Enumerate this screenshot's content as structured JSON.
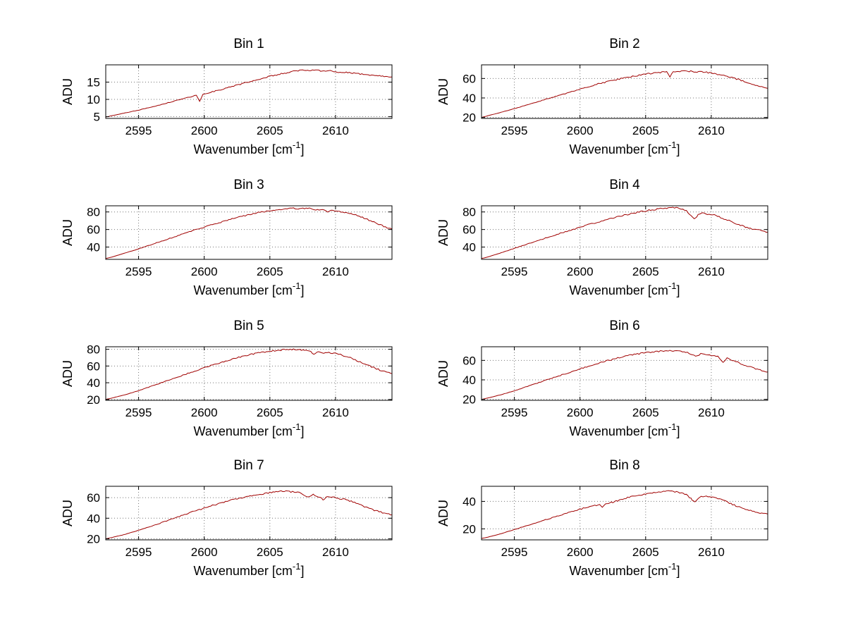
{
  "figure": {
    "background": "#ffffff",
    "line_color": "#a00000",
    "grid_color": "#777777",
    "axis_color": "#000000",
    "text_color": "#000000"
  },
  "chart_data": [
    {
      "type": "line",
      "title": "Bin 1",
      "ylabel": "ADU",
      "xlabel": {
        "text": "Wavenumber [cm",
        "sup": "-1",
        "close": "]"
      },
      "xlim": [
        2592.5,
        2614.3
      ],
      "ylim": [
        4.5,
        20
      ],
      "xticks": [
        2595,
        2600,
        2605,
        2610
      ],
      "yticks": [
        5,
        10,
        15
      ],
      "grid": true,
      "noise": 0.18,
      "points": [
        [
          2592.5,
          4.9
        ],
        [
          2593,
          5.3
        ],
        [
          2594,
          6.1
        ],
        [
          2595,
          6.9
        ],
        [
          2596,
          7.8
        ],
        [
          2597,
          8.8
        ],
        [
          2598,
          9.8
        ],
        [
          2599,
          10.8
        ],
        [
          2599.4,
          11.2
        ],
        [
          2599.65,
          9.4
        ],
        [
          2599.9,
          11.5
        ],
        [
          2600.5,
          12.1
        ],
        [
          2601,
          12.6
        ],
        [
          2602,
          13.6
        ],
        [
          2603,
          14.7
        ],
        [
          2604,
          15.7
        ],
        [
          2605,
          16.7
        ],
        [
          2606,
          17.5
        ],
        [
          2606.8,
          18.1
        ],
        [
          2607.5,
          18.6
        ],
        [
          2608,
          18.3
        ],
        [
          2608.6,
          18.7
        ],
        [
          2609,
          18.1
        ],
        [
          2609.6,
          18.4
        ],
        [
          2610,
          18.0
        ],
        [
          2610.7,
          17.8
        ],
        [
          2611.4,
          17.6
        ],
        [
          2612,
          17.3
        ],
        [
          2613,
          16.9
        ],
        [
          2614.3,
          16.5
        ]
      ]
    },
    {
      "type": "line",
      "title": "Bin 2",
      "ylabel": "ADU",
      "xlabel": {
        "text": "Wavenumber [cm",
        "sup": "-1",
        "close": "]"
      },
      "xlim": [
        2592.5,
        2614.3
      ],
      "ylim": [
        19,
        74
      ],
      "xticks": [
        2595,
        2600,
        2605,
        2610
      ],
      "yticks": [
        20,
        40,
        60
      ],
      "grid": true,
      "noise": 0.7,
      "points": [
        [
          2592.5,
          20
        ],
        [
          2593,
          21.8
        ],
        [
          2594,
          25.3
        ],
        [
          2595,
          29
        ],
        [
          2596,
          33
        ],
        [
          2597,
          37
        ],
        [
          2598,
          41
        ],
        [
          2599,
          45
        ],
        [
          2600,
          49
        ],
        [
          2601,
          53
        ],
        [
          2602,
          56.5
        ],
        [
          2603,
          59.5
        ],
        [
          2604,
          62
        ],
        [
          2605,
          64.5
        ],
        [
          2606,
          66
        ],
        [
          2606.6,
          66.8
        ],
        [
          2606.85,
          61.5
        ],
        [
          2607.1,
          66.8
        ],
        [
          2607.6,
          67.2
        ],
        [
          2608.2,
          67.6
        ],
        [
          2608.8,
          67
        ],
        [
          2609.4,
          66.8
        ],
        [
          2610,
          65.5
        ],
        [
          2610.6,
          64
        ],
        [
          2611.2,
          62
        ],
        [
          2611.8,
          60
        ],
        [
          2612.4,
          57.5
        ],
        [
          2613,
          54.5
        ],
        [
          2613.6,
          52
        ],
        [
          2614.3,
          49.8
        ]
      ]
    },
    {
      "type": "line",
      "title": "Bin 3",
      "ylabel": "ADU",
      "xlabel": {
        "text": "Wavenumber [cm",
        "sup": "-1",
        "close": "]"
      },
      "xlim": [
        2592.5,
        2614.3
      ],
      "ylim": [
        26,
        87
      ],
      "xticks": [
        2595,
        2600,
        2605,
        2610
      ],
      "yticks": [
        40,
        60,
        80
      ],
      "grid": true,
      "noise": 0.8,
      "points": [
        [
          2592.5,
          27
        ],
        [
          2593,
          28.8
        ],
        [
          2594,
          33.3
        ],
        [
          2595,
          38
        ],
        [
          2596,
          43
        ],
        [
          2597,
          48
        ],
        [
          2598,
          53
        ],
        [
          2599,
          58
        ],
        [
          2600,
          62.8
        ],
        [
          2601,
          67.3
        ],
        [
          2602,
          71.5
        ],
        [
          2603,
          75.5
        ],
        [
          2604,
          78.8
        ],
        [
          2605,
          81.5
        ],
        [
          2605.6,
          82.8
        ],
        [
          2606.2,
          83.6
        ],
        [
          2606.8,
          84.2
        ],
        [
          2607.4,
          83.6
        ],
        [
          2608,
          84.6
        ],
        [
          2608.5,
          82.5
        ],
        [
          2609,
          83.2
        ],
        [
          2609.4,
          80.5
        ],
        [
          2609.8,
          82
        ],
        [
          2610.3,
          80.5
        ],
        [
          2610.8,
          79.5
        ],
        [
          2611.3,
          77.5
        ],
        [
          2611.8,
          75
        ],
        [
          2612.3,
          72
        ],
        [
          2612.8,
          69
        ],
        [
          2613.3,
          66
        ],
        [
          2613.8,
          63
        ],
        [
          2614.3,
          60.5
        ]
      ]
    },
    {
      "type": "line",
      "title": "Bin 4",
      "ylabel": "ADU",
      "xlabel": {
        "text": "Wavenumber [cm",
        "sup": "-1",
        "close": "]"
      },
      "xlim": [
        2592.5,
        2614.3
      ],
      "ylim": [
        26,
        87
      ],
      "xticks": [
        2595,
        2600,
        2605,
        2610
      ],
      "yticks": [
        40,
        60,
        80
      ],
      "grid": true,
      "noise": 0.8,
      "points": [
        [
          2592.5,
          27
        ],
        [
          2593,
          28.8
        ],
        [
          2594,
          33.5
        ],
        [
          2595,
          38.5
        ],
        [
          2596,
          43.5
        ],
        [
          2597,
          48.5
        ],
        [
          2598,
          53.3
        ],
        [
          2599,
          58
        ],
        [
          2600,
          62.5
        ],
        [
          2601,
          67
        ],
        [
          2602,
          71
        ],
        [
          2603,
          75
        ],
        [
          2604,
          78.5
        ],
        [
          2605,
          81.3
        ],
        [
          2606,
          83.5
        ],
        [
          2606.6,
          84.6
        ],
        [
          2607.2,
          85
        ],
        [
          2607.7,
          83.8
        ],
        [
          2608.1,
          81
        ],
        [
          2608.45,
          76.5
        ],
        [
          2608.7,
          72
        ],
        [
          2609,
          76.5
        ],
        [
          2609.3,
          78.8
        ],
        [
          2609.7,
          77
        ],
        [
          2610.1,
          77.5
        ],
        [
          2610.6,
          74.5
        ],
        [
          2611.1,
          71.5
        ],
        [
          2611.6,
          68.5
        ],
        [
          2612.1,
          65.5
        ],
        [
          2612.6,
          63
        ],
        [
          2613.1,
          61
        ],
        [
          2613.7,
          59
        ],
        [
          2614.3,
          57
        ]
      ]
    },
    {
      "type": "line",
      "title": "Bin 5",
      "ylabel": "ADU",
      "xlabel": {
        "text": "Wavenumber [cm",
        "sup": "-1",
        "close": "]"
      },
      "xlim": [
        2592.5,
        2614.3
      ],
      "ylim": [
        19,
        83
      ],
      "xticks": [
        2595,
        2600,
        2605,
        2610
      ],
      "yticks": [
        20,
        40,
        60,
        80
      ],
      "grid": true,
      "noise": 0.8,
      "points": [
        [
          2592.5,
          20
        ],
        [
          2593,
          21.8
        ],
        [
          2594,
          25.8
        ],
        [
          2595,
          30.5
        ],
        [
          2596,
          36
        ],
        [
          2597,
          41.5
        ],
        [
          2598,
          47
        ],
        [
          2599,
          52.5
        ],
        [
          2600,
          57.8
        ],
        [
          2601,
          63
        ],
        [
          2602,
          67.8
        ],
        [
          2603,
          71.8
        ],
        [
          2604,
          75.3
        ],
        [
          2605,
          77.8
        ],
        [
          2605.6,
          78.8
        ],
        [
          2606.2,
          79.6
        ],
        [
          2606.8,
          80
        ],
        [
          2607.4,
          79.3
        ],
        [
          2608,
          77.8
        ],
        [
          2608.35,
          74.8
        ],
        [
          2608.7,
          77
        ],
        [
          2609.1,
          75.8
        ],
        [
          2609.5,
          76.3
        ],
        [
          2610,
          74.8
        ],
        [
          2610.5,
          73
        ],
        [
          2611,
          70.5
        ],
        [
          2611.5,
          67.5
        ],
        [
          2612,
          64
        ],
        [
          2612.5,
          60.5
        ],
        [
          2613,
          57.5
        ],
        [
          2613.5,
          54.5
        ],
        [
          2614.3,
          51
        ]
      ]
    },
    {
      "type": "line",
      "title": "Bin 6",
      "ylabel": "ADU",
      "xlabel": {
        "text": "Wavenumber [cm",
        "sup": "-1",
        "close": "]"
      },
      "xlim": [
        2592.5,
        2614.3
      ],
      "ylim": [
        19,
        74
      ],
      "xticks": [
        2595,
        2600,
        2605,
        2610
      ],
      "yticks": [
        20,
        40,
        60
      ],
      "grid": true,
      "noise": 0.7,
      "points": [
        [
          2592.5,
          20
        ],
        [
          2593,
          21.4
        ],
        [
          2594,
          24.8
        ],
        [
          2595,
          28.8
        ],
        [
          2596,
          33.3
        ],
        [
          2597,
          37.8
        ],
        [
          2598,
          42.3
        ],
        [
          2599,
          46.8
        ],
        [
          2600,
          51.3
        ],
        [
          2601,
          55.3
        ],
        [
          2602,
          59.3
        ],
        [
          2603,
          62.8
        ],
        [
          2604,
          65.8
        ],
        [
          2605,
          68
        ],
        [
          2606,
          69.3
        ],
        [
          2606.6,
          70
        ],
        [
          2607.2,
          69.6
        ],
        [
          2607.8,
          69.3
        ],
        [
          2608.3,
          67.5
        ],
        [
          2608.8,
          64
        ],
        [
          2609.2,
          66.8
        ],
        [
          2609.6,
          66.3
        ],
        [
          2610,
          65.3
        ],
        [
          2610.5,
          63.8
        ],
        [
          2610.9,
          57.5
        ],
        [
          2611.2,
          62
        ],
        [
          2611.6,
          60.3
        ],
        [
          2612,
          58
        ],
        [
          2612.5,
          55.5
        ],
        [
          2613,
          53
        ],
        [
          2613.5,
          50.8
        ],
        [
          2614.3,
          48
        ]
      ]
    },
    {
      "type": "line",
      "title": "Bin 7",
      "ylabel": "ADU",
      "xlabel": {
        "text": "Wavenumber [cm",
        "sup": "-1",
        "close": "]"
      },
      "xlim": [
        2592.5,
        2614.3
      ],
      "ylim": [
        19,
        71
      ],
      "xticks": [
        2595,
        2600,
        2605,
        2610
      ],
      "yticks": [
        20,
        40,
        60
      ],
      "grid": true,
      "noise": 0.7,
      "points": [
        [
          2592.5,
          20
        ],
        [
          2593,
          21.4
        ],
        [
          2594,
          24.4
        ],
        [
          2595,
          28.3
        ],
        [
          2596,
          32.3
        ],
        [
          2597,
          36.8
        ],
        [
          2598,
          41.3
        ],
        [
          2599,
          45.8
        ],
        [
          2600,
          49.8
        ],
        [
          2601,
          53.8
        ],
        [
          2602,
          57.3
        ],
        [
          2603,
          60.3
        ],
        [
          2604,
          62.8
        ],
        [
          2605,
          64.8
        ],
        [
          2605.6,
          65.8
        ],
        [
          2606.1,
          66.3
        ],
        [
          2606.6,
          65.6
        ],
        [
          2607.1,
          65.6
        ],
        [
          2607.5,
          63.5
        ],
        [
          2607.9,
          60
        ],
        [
          2608.3,
          62.8
        ],
        [
          2608.7,
          61
        ],
        [
          2609.05,
          58.3
        ],
        [
          2609.4,
          61
        ],
        [
          2609.8,
          60.3
        ],
        [
          2610.2,
          59.3
        ],
        [
          2610.7,
          58.3
        ],
        [
          2611.2,
          56.3
        ],
        [
          2611.7,
          53.8
        ],
        [
          2612.2,
          51
        ],
        [
          2612.7,
          48.8
        ],
        [
          2613.2,
          46.8
        ],
        [
          2613.7,
          45
        ],
        [
          2614.3,
          43.3
        ]
      ]
    },
    {
      "type": "line",
      "title": "Bin 8",
      "ylabel": "ADU",
      "xlabel": {
        "text": "Wavenumber [cm",
        "sup": "-1",
        "close": "]"
      },
      "xlim": [
        2592.5,
        2614.3
      ],
      "ylim": [
        12,
        51
      ],
      "xticks": [
        2595,
        2600,
        2605,
        2610
      ],
      "yticks": [
        20,
        40
      ],
      "grid": true,
      "noise": 0.5,
      "points": [
        [
          2592.5,
          13
        ],
        [
          2593,
          14
        ],
        [
          2594,
          16.5
        ],
        [
          2595,
          19.5
        ],
        [
          2596,
          22.5
        ],
        [
          2597,
          25.5
        ],
        [
          2598,
          28.5
        ],
        [
          2599,
          31.5
        ],
        [
          2600,
          34.3
        ],
        [
          2601,
          36.8
        ],
        [
          2601.5,
          37.8
        ],
        [
          2601.7,
          35.3
        ],
        [
          2601.95,
          38.3
        ],
        [
          2602.5,
          39.5
        ],
        [
          2603,
          41
        ],
        [
          2604,
          43.8
        ],
        [
          2605,
          45.5
        ],
        [
          2606,
          46.8
        ],
        [
          2606.6,
          47.6
        ],
        [
          2607.1,
          47.2
        ],
        [
          2607.6,
          46.5
        ],
        [
          2608.1,
          45
        ],
        [
          2608.45,
          42
        ],
        [
          2608.75,
          39.5
        ],
        [
          2609.1,
          43
        ],
        [
          2609.5,
          43.8
        ],
        [
          2610,
          43.2
        ],
        [
          2610.5,
          42.2
        ],
        [
          2611,
          40.3
        ],
        [
          2611.5,
          38.3
        ],
        [
          2612,
          36.3
        ],
        [
          2612.5,
          34.8
        ],
        [
          2613,
          33.2
        ],
        [
          2613.6,
          31.8
        ],
        [
          2614.3,
          30.8
        ]
      ]
    }
  ]
}
